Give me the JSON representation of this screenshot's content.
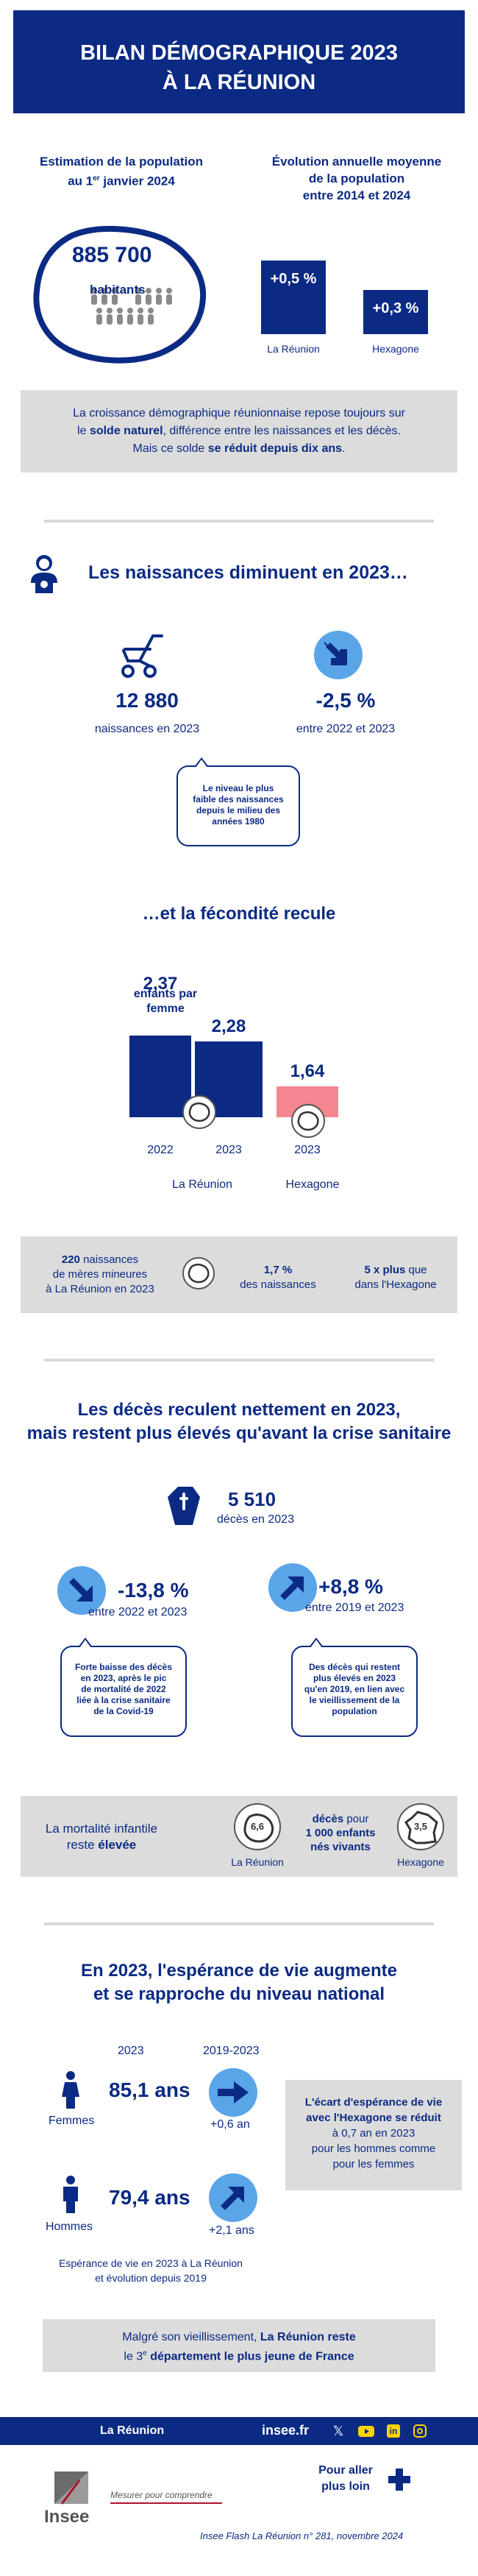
{
  "colors": {
    "navy": "#0b2a83",
    "light_blue": "#5aa5e8",
    "pink": "#f4868f",
    "gray": "#dcdcdc"
  },
  "header": {
    "line1": "BILAN DÉMOGRAPHIQUE 2023",
    "line2": "À LA RÉUNION"
  },
  "population": {
    "title_line1": "Estimation de la population",
    "title_line2_pre": "au 1",
    "title_line2_sup": "er",
    "title_line2_post": " janvier 2024",
    "value": "885 700",
    "unit": "habitants"
  },
  "evolution": {
    "title_line1": "Évolution annuelle moyenne",
    "title_line2": "de la population",
    "title_line3": "entre 2014 et 2024",
    "bars": [
      {
        "label": "La Réunion",
        "value_text": "+0,5 %",
        "value": 0.5
      },
      {
        "label": "Hexagone",
        "value_text": "+0,3 %",
        "value": 0.3
      }
    ]
  },
  "intro_box": {
    "line1": "La croissance démographique réunionnaise repose toujours sur",
    "line2_pre": "le ",
    "line2_bold": "solde naturel",
    "line2_post": ", différence entre les naissances et les décès.",
    "line3_pre": "Mais ce solde ",
    "line3_bold": "se réduit depuis dix ans",
    "line3_post": "."
  },
  "births": {
    "title": "Les naissances diminuent en 2023…",
    "count": "12 880",
    "count_label": "naissances en 2023",
    "change": "-2,5 %",
    "change_label": "entre 2022 et 2023",
    "bubble": [
      "Le niveau le plus",
      "faible des naissances",
      "depuis le milieu des",
      "années 1980"
    ]
  },
  "fertility": {
    "title": "…et la fécondité recule",
    "bars": [
      {
        "year": "2022",
        "value": 2.37,
        "value_text": "2,37"
      },
      {
        "year": "2023",
        "value": 2.28,
        "value_text": "2,28"
      },
      {
        "year": "2023",
        "value": 1.64,
        "value_text": "1,64"
      }
    ],
    "unit_line1": "enfants par",
    "unit_line2": "femme",
    "group_reunion": "La Réunion",
    "group_hexagone": "Hexagone"
  },
  "minors_box": {
    "count": "220",
    "text1": " naissances",
    "text2": "de mères mineures",
    "text3": "à La Réunion en 2023",
    "pct": "1,7 %",
    "pct_label": "des naissances",
    "mult": "5 x plus",
    "mult_label1": " que",
    "mult_label2": "dans l'Hexagone"
  },
  "deaths": {
    "title_line1": "Les décès reculent nettement en 2023,",
    "title_line2": "mais restent plus élevés qu'avant la crise sanitaire",
    "count": "5 510",
    "count_label": "décès en 2023",
    "change1": "-13,8 %",
    "change1_label": "entre 2022 et 2023",
    "change2": "+8,8 %",
    "change2_label": "entre 2019 et 2023",
    "bubble1": [
      "Forte baisse des décès",
      "en 2023, après le pic",
      "de mortalité de 2022",
      "liée à la crise sanitaire",
      "de la Covid-19"
    ],
    "bubble2": [
      "Des décès qui restent",
      "plus élevés en 2023",
      "qu'en 2019, en lien avec",
      "le vieillissement de la",
      "population"
    ]
  },
  "infant_mortality": {
    "label1": "La mortalité infantile",
    "label2_pre": "reste ",
    "label2_bold": "élevée",
    "reunion_value": "6,6",
    "reunion_label": "La Réunion",
    "unit1": "décès",
    "unit1_post": " pour",
    "unit2": "1 000 enfants",
    "unit3": "nés vivants",
    "hexagone_value": "3,5",
    "hexagone_label": "Hexagone"
  },
  "life_expectancy": {
    "title_line1": "En 2023, l'espérance de vie augmente",
    "title_line2": "et se rapproche du niveau national",
    "col_2023": "2023",
    "col_period": "2019-2023",
    "women_label": "Femmes",
    "women_value": "85,1 ans",
    "women_change": "+0,6 an",
    "men_label": "Hommes",
    "men_value": "79,4 ans",
    "men_change": "+2,1 ans",
    "note_line1": "Espérance de vie en 2023 à La Réunion",
    "note_line2": "et évolution depuis 2019",
    "side_box": [
      "L'écart d'espérance de vie",
      "avec l'Hexagone se réduit",
      "à 0,7 an en 2023",
      "pour les hommes comme",
      "pour les femmes"
    ]
  },
  "youngest_box": {
    "line1_pre": "Malgré son vieillissement, ",
    "line1_bold": "La Réunion reste",
    "line2_pre": "le 3",
    "line2_sup": "e",
    "line2_bold": " département le plus jeune de France"
  },
  "footer": {
    "region": "La Réunion",
    "site": "insee.fr",
    "social_icons": [
      "x-icon",
      "youtube-icon",
      "linkedin-icon",
      "instagram-icon"
    ],
    "logo_text": "Insee",
    "tagline": "Mesurer pour comprendre",
    "more_line1": "Pour aller",
    "more_line2": "plus loin",
    "publication": "Insee Flash La Réunion n° 281, novembre 2024"
  }
}
